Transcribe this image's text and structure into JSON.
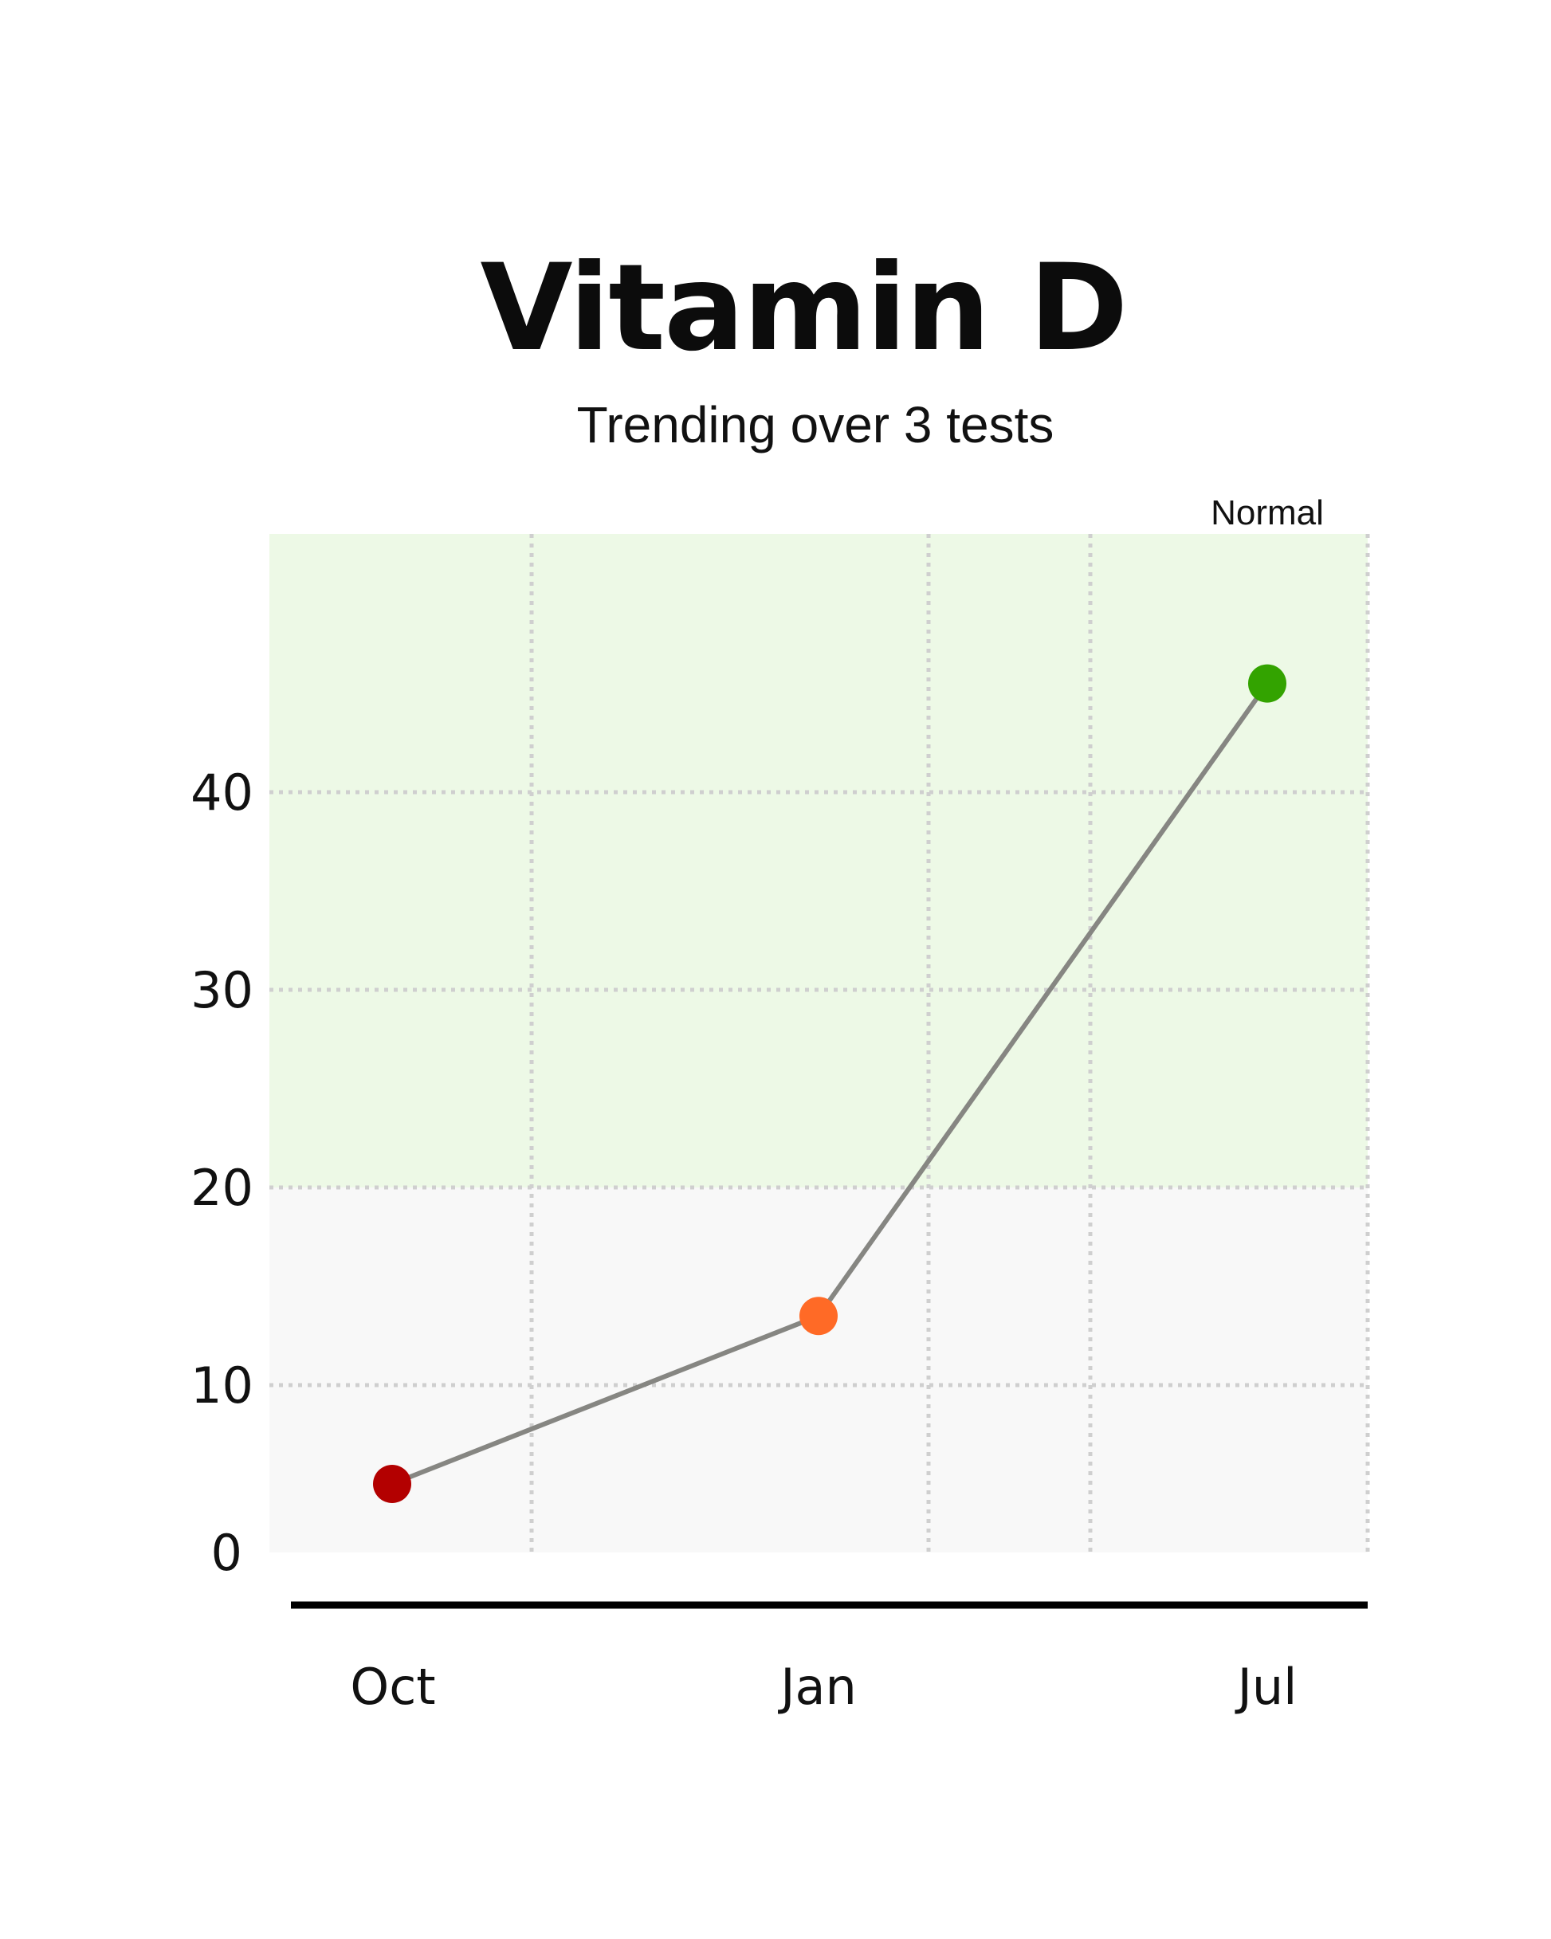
{
  "header": {
    "title": "Vitamin D",
    "subtitle": "Trending over 3 tests"
  },
  "chart_data": {
    "type": "line",
    "title": "Vitamin D",
    "subtitle": "Trending over 3 tests",
    "xlabel": "",
    "ylabel": "",
    "categories": [
      "Oct",
      "Jan",
      "Jul"
    ],
    "series": [
      {
        "values": [
          5,
          13.5,
          45.5
        ]
      }
    ],
    "point_colors": [
      "#b30000",
      "#ff6a26",
      "#33a300"
    ],
    "line_color": "#868682",
    "ylim": [
      0,
      50
    ],
    "yticks": [
      0,
      10,
      20,
      30,
      40
    ],
    "grid": true,
    "zones": [
      {
        "label": "Normal",
        "from": 20,
        "to": 50,
        "color": "#edf9e6"
      },
      {
        "label": "",
        "from": 0,
        "to": 20,
        "color": "#f8f8f8"
      }
    ]
  }
}
